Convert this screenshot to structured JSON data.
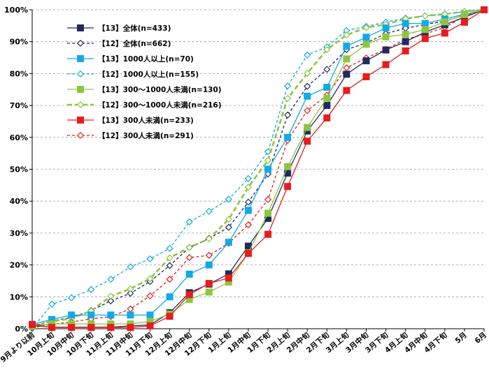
{
  "chart_data": {
    "type": "line",
    "title": "",
    "xlabel": "",
    "ylabel": "",
    "ylim": [
      0,
      100
    ],
    "y_tick_labels": [
      "0%",
      "10%",
      "20%",
      "30%",
      "40%",
      "50%",
      "60%",
      "70%",
      "80%",
      "90%",
      "100%"
    ],
    "grid": "horizontal dashed",
    "legend_position": "top-left",
    "categories": [
      "9月より以前",
      "10月上旬",
      "10月中旬",
      "10月下旬",
      "11月上旬",
      "11月中旬",
      "11月下旬",
      "12月上旬",
      "12月中旬",
      "12月下旬",
      "1月上旬",
      "1月中旬",
      "1月下旬",
      "2月上旬",
      "2月中旬",
      "2月下旬",
      "3月上旬",
      "3月中旬",
      "3月下旬",
      "4月上旬",
      "4月中旬",
      "4月下旬",
      "5月",
      "6月"
    ],
    "series": [
      {
        "name": "【13】全体(n=433)",
        "color": "#1f2a60",
        "dash": "solid",
        "marker": "square-filled",
        "values": [
          1,
          0.5,
          0.5,
          0.5,
          0.5,
          0.9,
          1.2,
          5,
          11.3,
          14,
          17.2,
          25.9,
          34.6,
          48.8,
          62,
          70,
          79.8,
          84,
          87.4,
          90,
          93,
          95.3,
          97.7,
          100
        ]
      },
      {
        "name": "【12】全体(n=662)",
        "color": "#1f2a60",
        "dash": "dashed",
        "marker": "diamond-open",
        "values": [
          0.8,
          2.5,
          3.5,
          5.7,
          8.7,
          11.1,
          14.8,
          19.8,
          25.5,
          28.3,
          31.8,
          39.7,
          48.5,
          67,
          76,
          81.3,
          87.5,
          89.6,
          92.5,
          94.2,
          95.4,
          96.4,
          98.3,
          100
        ]
      },
      {
        "name": "【13】1000人以上(n=70)",
        "color": "#13a8e8",
        "dash": "solid",
        "marker": "square-filled",
        "values": [
          1.4,
          2.9,
          4.3,
          4.3,
          4.3,
          4.3,
          4.3,
          10,
          17.1,
          20,
          27.1,
          37.1,
          50,
          60,
          72.9,
          75.7,
          88.6,
          91.4,
          94.3,
          95.7,
          95.7,
          97.1,
          98.6,
          100
        ]
      },
      {
        "name": "【12】1000人以上(n=155)",
        "color": "#13a8e8",
        "dash": "dashed",
        "marker": "diamond-open",
        "values": [
          0,
          7.7,
          9.7,
          12.3,
          15.5,
          19.4,
          21.9,
          25.2,
          33.5,
          36.8,
          40.6,
          47.1,
          55.5,
          76.1,
          85.8,
          88.4,
          93.5,
          94.8,
          96.1,
          97.4,
          98.1,
          98.7,
          99.4,
          100
        ]
      },
      {
        "name": "【13】300～1000人未満(n=130)",
        "color": "#8cc63f",
        "dash": "solid",
        "marker": "square-filled",
        "values": [
          0.8,
          1.5,
          1.5,
          1.5,
          1.5,
          1.5,
          2.3,
          4.6,
          9.2,
          11.5,
          14.6,
          23.8,
          36.2,
          50.8,
          63.1,
          72.3,
          84.6,
          89.2,
          91.5,
          92.3,
          93.8,
          96.2,
          98.5,
          100
        ]
      },
      {
        "name": "【12】300～1000人未満(n=216)",
        "color": "#8cc63f",
        "dash": "dashed",
        "marker": "diamond-open",
        "values": [
          0.5,
          2.3,
          3.2,
          5.6,
          10.2,
          12.5,
          15.7,
          22.2,
          25.5,
          28.2,
          34.3,
          44.4,
          52.8,
          72.2,
          80.1,
          87.5,
          92.1,
          94.4,
          95.4,
          97.2,
          98.1,
          98.6,
          99.5,
          100
        ]
      },
      {
        "name": "【13】300人未満(n=233)",
        "color": "#e81c1c",
        "dash": "solid",
        "marker": "square-filled",
        "values": [
          1.3,
          0.4,
          0.4,
          0.4,
          0.4,
          0.4,
          0.9,
          3.9,
          10.7,
          14.2,
          15.9,
          23.6,
          29.6,
          44.6,
          58.8,
          66.1,
          74.7,
          79,
          82.8,
          87.1,
          91,
          92.7,
          96.1,
          100
        ]
      },
      {
        "name": "【12】300人未満(n=291)",
        "color": "#e81c1c",
        "dash": "dashed",
        "marker": "diamond-open",
        "values": [
          0.3,
          1.4,
          2.1,
          3.1,
          3.8,
          6.2,
          10.3,
          15.5,
          22.3,
          23,
          26.8,
          32.6,
          40.5,
          59.1,
          68.4,
          73.2,
          81.8,
          84.9,
          87.6,
          90.7,
          92.4,
          94.5,
          97.9,
          100
        ]
      }
    ]
  }
}
